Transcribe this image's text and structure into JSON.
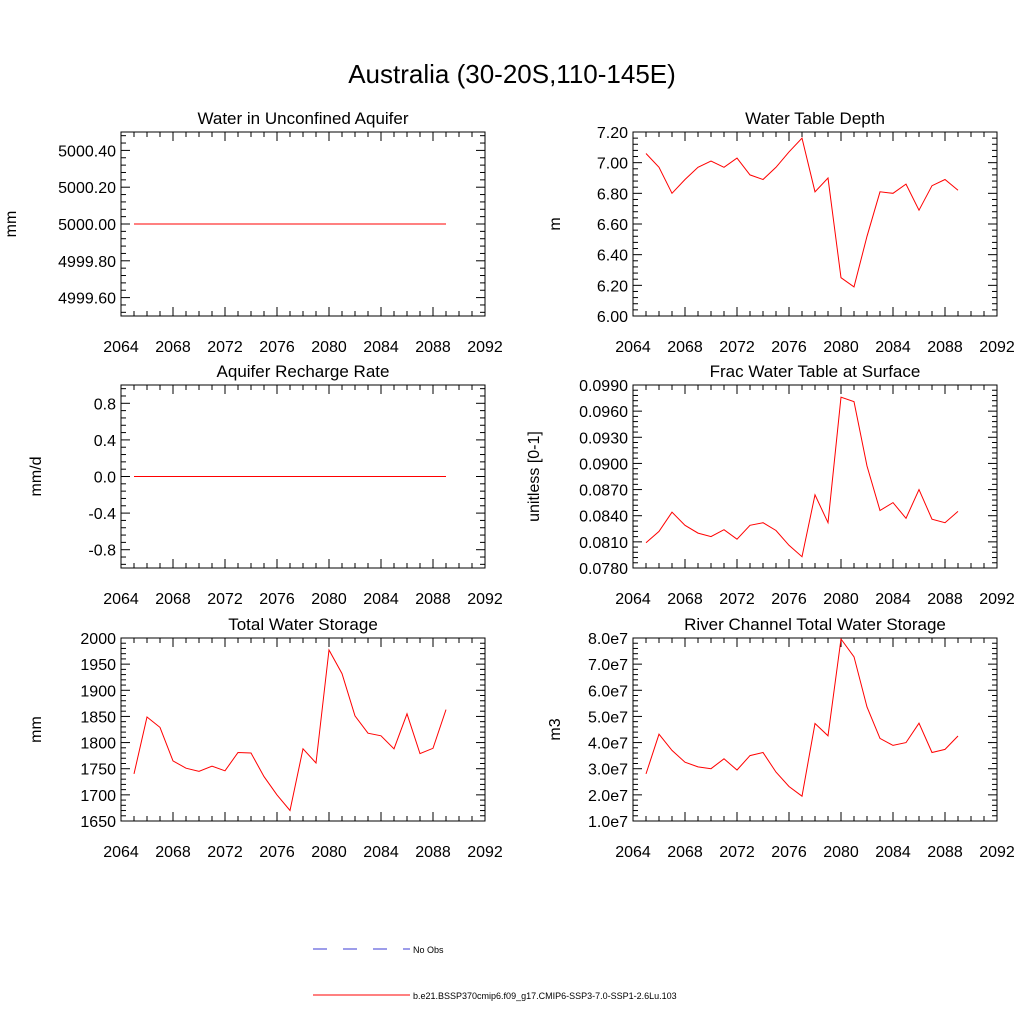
{
  "figure": {
    "title": "Australia (30-20S,110-145E)",
    "line_color": "#ff0000",
    "obs_color": "#3b3bd6"
  },
  "legend": {
    "obs_label": "No Obs",
    "model_label": "b.e21.BSSP370cmip6.f09_g17.CMIP6-SSP3-7.0-SSP1-2.6Lu.103"
  },
  "chart_data": [
    {
      "type": "line",
      "title": "Water in Unconfined Aquifer",
      "ylabel": "mm",
      "xlim": [
        2064,
        2092
      ],
      "ylim": [
        4999.5,
        5000.5
      ],
      "x_ticks": [
        2064,
        2068,
        2072,
        2076,
        2080,
        2084,
        2088,
        2092
      ],
      "x_tick_labels": [
        "2064",
        "2068",
        "2072",
        "2076",
        "2080",
        "2084",
        "2088",
        "2092"
      ],
      "y_ticks": [
        4999.6,
        4999.8,
        5000.0,
        5000.2,
        5000.4
      ],
      "y_tick_labels": [
        "4999.60",
        "4999.80",
        "5000.00",
        "5000.20",
        "5000.40"
      ],
      "x": [
        2065,
        2066,
        2067,
        2068,
        2069,
        2070,
        2071,
        2072,
        2073,
        2074,
        2075,
        2076,
        2077,
        2078,
        2079,
        2080,
        2081,
        2082,
        2083,
        2084,
        2085,
        2086,
        2087,
        2088,
        2089
      ],
      "series": [
        {
          "values": [
            5000,
            5000,
            5000,
            5000,
            5000,
            5000,
            5000,
            5000,
            5000,
            5000,
            5000,
            5000,
            5000,
            5000,
            5000,
            5000,
            5000,
            5000,
            5000,
            5000,
            5000,
            5000,
            5000,
            5000,
            5000
          ]
        }
      ]
    },
    {
      "type": "line",
      "title": "Water Table Depth",
      "ylabel": "m",
      "xlim": [
        2064,
        2092
      ],
      "ylim": [
        6.0,
        7.2
      ],
      "x_ticks": [
        2064,
        2068,
        2072,
        2076,
        2080,
        2084,
        2088,
        2092
      ],
      "x_tick_labels": [
        "2064",
        "2068",
        "2072",
        "2076",
        "2080",
        "2084",
        "2088",
        "2092"
      ],
      "y_ticks": [
        6.0,
        6.2,
        6.4,
        6.6,
        6.8,
        7.0,
        7.2
      ],
      "y_tick_labels": [
        "6.00",
        "6.20",
        "6.40",
        "6.60",
        "6.80",
        "7.00",
        "7.20"
      ],
      "x": [
        2065,
        2066,
        2067,
        2068,
        2069,
        2070,
        2071,
        2072,
        2073,
        2074,
        2075,
        2076,
        2077,
        2078,
        2079,
        2080,
        2081,
        2082,
        2083,
        2084,
        2085,
        2086,
        2087,
        2088,
        2089
      ],
      "series": [
        {
          "values": [
            7.06,
            6.97,
            6.8,
            6.89,
            6.97,
            7.01,
            6.97,
            7.03,
            6.92,
            6.89,
            6.97,
            7.07,
            7.16,
            6.81,
            6.9,
            6.25,
            6.19,
            6.52,
            6.81,
            6.8,
            6.86,
            6.69,
            6.85,
            6.89,
            6.82
          ]
        }
      ]
    },
    {
      "type": "line",
      "title": "Aquifer Recharge Rate",
      "ylabel": "mm/d",
      "xlim": [
        2064,
        2092
      ],
      "ylim": [
        -1.0,
        1.0
      ],
      "x_ticks": [
        2064,
        2068,
        2072,
        2076,
        2080,
        2084,
        2088,
        2092
      ],
      "x_tick_labels": [
        "2064",
        "2068",
        "2072",
        "2076",
        "2080",
        "2084",
        "2088",
        "2092"
      ],
      "y_ticks": [
        -0.8,
        -0.4,
        0.0,
        0.4,
        0.8
      ],
      "y_tick_labels": [
        "-0.8",
        "-0.4",
        "0.0",
        "0.4",
        "0.8"
      ],
      "x": [
        2065,
        2066,
        2067,
        2068,
        2069,
        2070,
        2071,
        2072,
        2073,
        2074,
        2075,
        2076,
        2077,
        2078,
        2079,
        2080,
        2081,
        2082,
        2083,
        2084,
        2085,
        2086,
        2087,
        2088,
        2089
      ],
      "series": [
        {
          "values": [
            0,
            0,
            0,
            0,
            0,
            0,
            0,
            0,
            0,
            0,
            0,
            0,
            0,
            0,
            0,
            0,
            0,
            0,
            0,
            0,
            0,
            0,
            0,
            0,
            0
          ]
        }
      ]
    },
    {
      "type": "line",
      "title": "Frac Water Table at Surface",
      "ylabel": "unitless [0-1]",
      "xlim": [
        2064,
        2092
      ],
      "ylim": [
        0.078,
        0.099
      ],
      "x_ticks": [
        2064,
        2068,
        2072,
        2076,
        2080,
        2084,
        2088,
        2092
      ],
      "x_tick_labels": [
        "2064",
        "2068",
        "2072",
        "2076",
        "2080",
        "2084",
        "2088",
        "2092"
      ],
      "y_ticks": [
        0.078,
        0.081,
        0.084,
        0.087,
        0.09,
        0.093,
        0.096,
        0.099
      ],
      "y_tick_labels": [
        "0.0780",
        "0.0810",
        "0.0840",
        "0.0870",
        "0.0900",
        "0.0930",
        "0.0960",
        "0.0990"
      ],
      "x": [
        2065,
        2066,
        2067,
        2068,
        2069,
        2070,
        2071,
        2072,
        2073,
        2074,
        2075,
        2076,
        2077,
        2078,
        2079,
        2080,
        2081,
        2082,
        2083,
        2084,
        2085,
        2086,
        2087,
        2088,
        2089
      ],
      "series": [
        {
          "values": [
            0.0809,
            0.0822,
            0.0844,
            0.0829,
            0.082,
            0.0816,
            0.0824,
            0.0813,
            0.0829,
            0.0832,
            0.0823,
            0.0806,
            0.0793,
            0.0864,
            0.0832,
            0.0976,
            0.0971,
            0.0897,
            0.0846,
            0.0855,
            0.0837,
            0.087,
            0.0836,
            0.0832,
            0.0845
          ]
        }
      ]
    },
    {
      "type": "line",
      "title": "Total Water Storage",
      "ylabel": "mm",
      "xlim": [
        2064,
        2092
      ],
      "ylim": [
        1650,
        2000
      ],
      "x_ticks": [
        2064,
        2068,
        2072,
        2076,
        2080,
        2084,
        2088,
        2092
      ],
      "x_tick_labels": [
        "2064",
        "2068",
        "2072",
        "2076",
        "2080",
        "2084",
        "2088",
        "2092"
      ],
      "y_ticks": [
        1650,
        1700,
        1750,
        1800,
        1850,
        1900,
        1950,
        2000
      ],
      "y_tick_labels": [
        "1650",
        "1700",
        "1750",
        "1800",
        "1850",
        "1900",
        "1950",
        "2000"
      ],
      "x": [
        2065,
        2066,
        2067,
        2068,
        2069,
        2070,
        2071,
        2072,
        2073,
        2074,
        2075,
        2076,
        2077,
        2078,
        2079,
        2080,
        2081,
        2082,
        2083,
        2084,
        2085,
        2086,
        2087,
        2088,
        2089
      ],
      "series": [
        {
          "values": [
            1740,
            1849,
            1829,
            1765,
            1751,
            1745,
            1755,
            1746,
            1781,
            1780,
            1735,
            1700,
            1670,
            1788,
            1761,
            1977,
            1932,
            1851,
            1818,
            1813,
            1788,
            1855,
            1779,
            1789,
            1863
          ]
        }
      ]
    },
    {
      "type": "line",
      "title": "River Channel Total Water Storage",
      "ylabel": "m3",
      "xlim": [
        2064,
        2092
      ],
      "ylim": [
        10000000,
        80000000
      ],
      "x_ticks": [
        2064,
        2068,
        2072,
        2076,
        2080,
        2084,
        2088,
        2092
      ],
      "x_tick_labels": [
        "2064",
        "2068",
        "2072",
        "2076",
        "2080",
        "2084",
        "2088",
        "2092"
      ],
      "y_ticks": [
        10000000,
        20000000,
        30000000,
        40000000,
        50000000,
        60000000,
        70000000,
        80000000
      ],
      "y_tick_labels": [
        "1.0e7",
        "2.0e7",
        "3.0e7",
        "4.0e7",
        "5.0e7",
        "6.0e7",
        "7.0e7",
        "8.0e7"
      ],
      "x": [
        2065,
        2066,
        2067,
        2068,
        2069,
        2070,
        2071,
        2072,
        2073,
        2074,
        2075,
        2076,
        2077,
        2078,
        2079,
        2080,
        2081,
        2082,
        2083,
        2084,
        2085,
        2086,
        2087,
        2088,
        2089
      ],
      "series": [
        {
          "values": [
            28000000,
            43200000,
            37000000,
            32500000,
            30700000,
            30000000,
            33800000,
            29500000,
            35000000,
            36200000,
            28700000,
            23200000,
            19500000,
            47300000,
            42600000,
            79600000,
            72800000,
            53600000,
            41600000,
            38900000,
            40000000,
            47400000,
            36200000,
            37400000,
            42500000
          ]
        }
      ]
    }
  ]
}
